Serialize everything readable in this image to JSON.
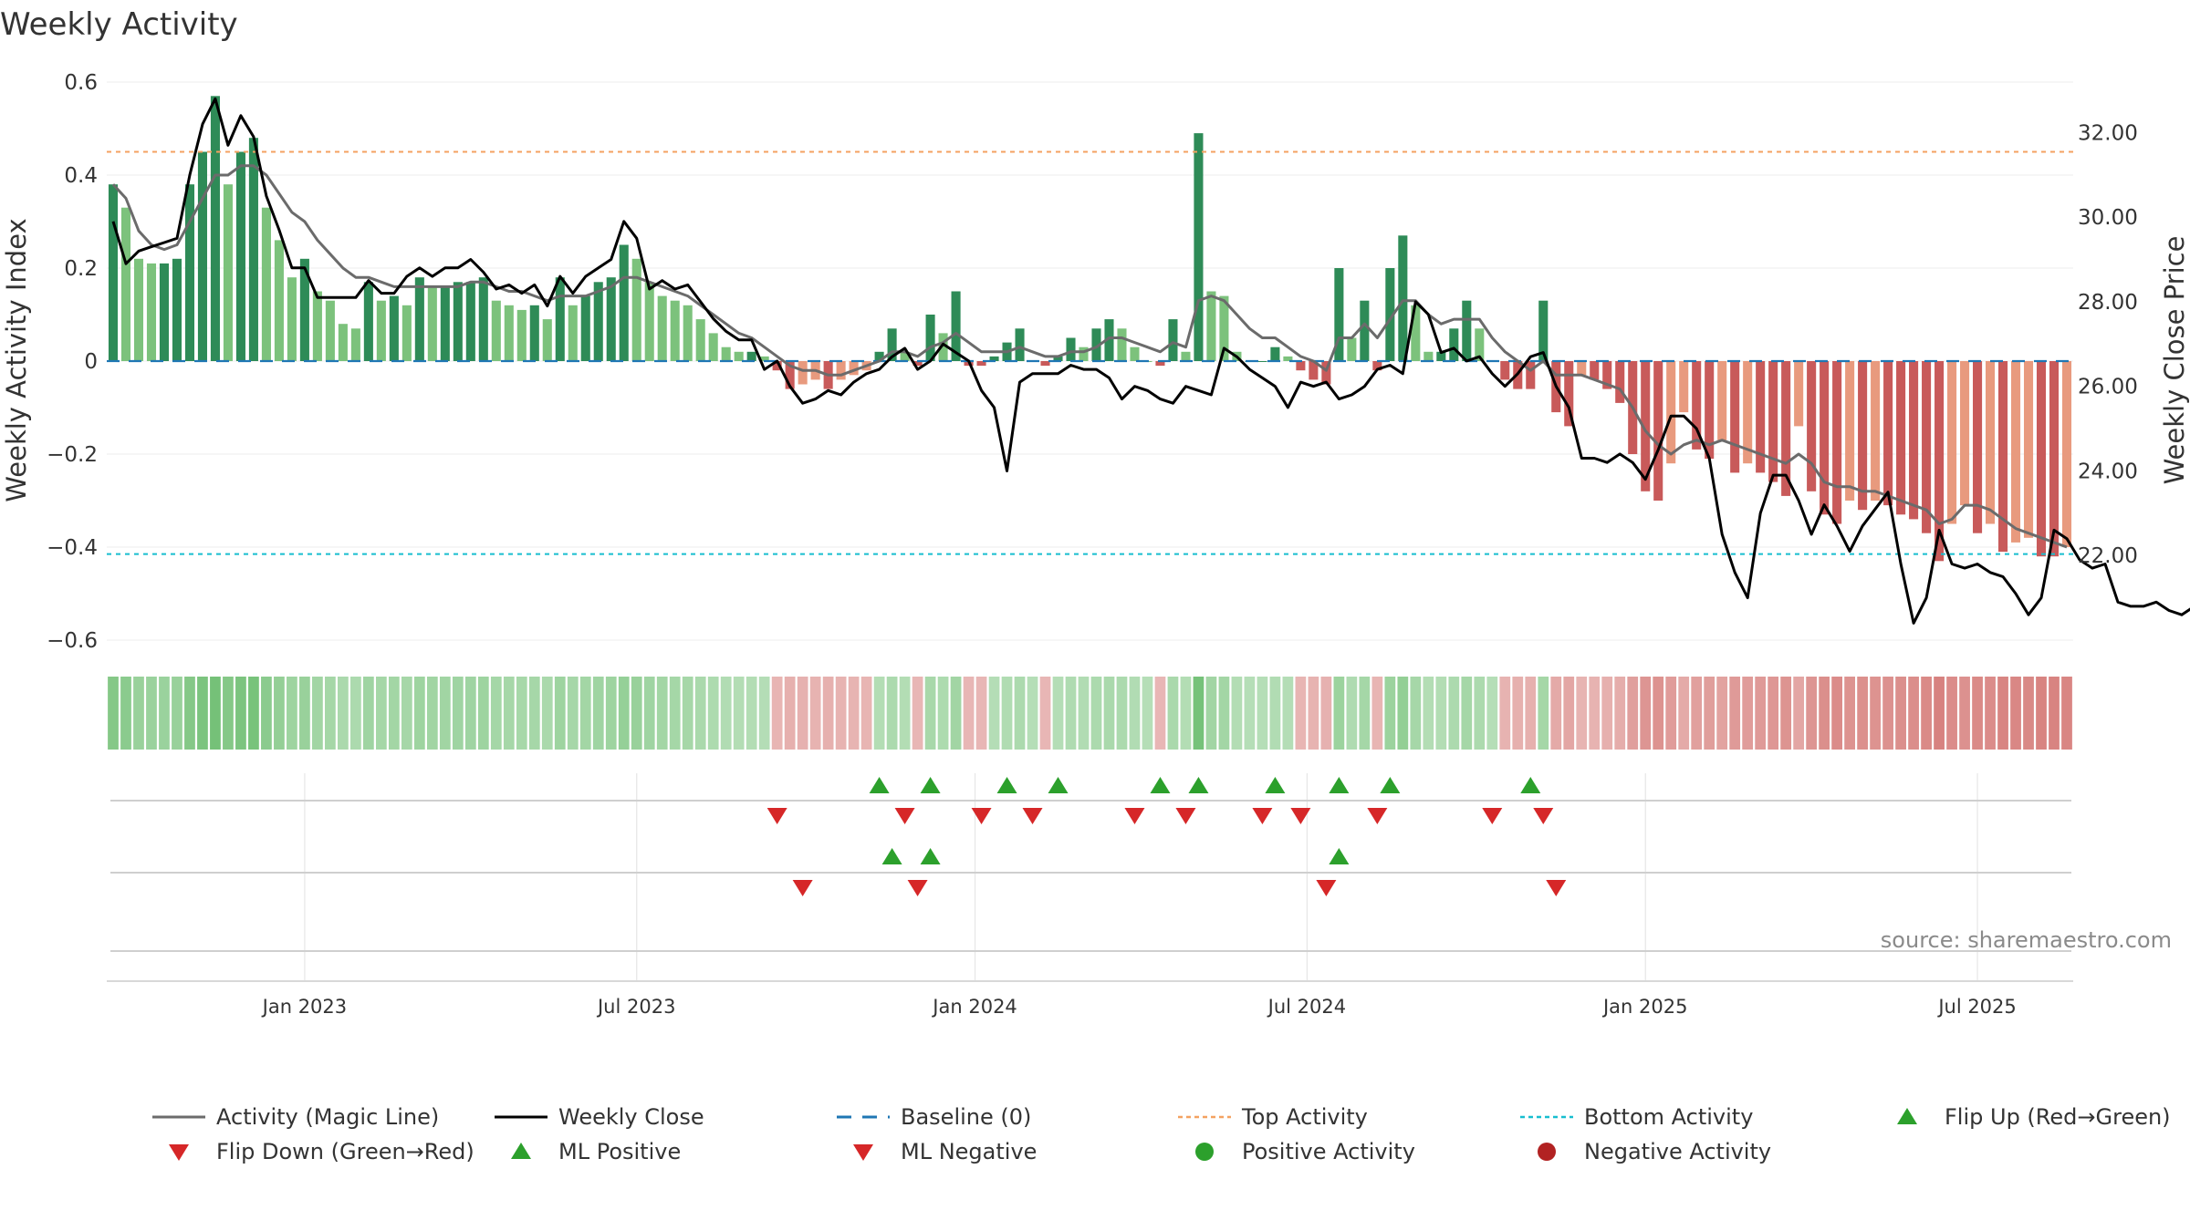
{
  "chart_data": {
    "type": "bar",
    "title": "Weekly Activity",
    "ylabel": "Weekly Activity Index",
    "y2label": "Weekly Close Price",
    "ylim": [
      -0.6,
      0.6
    ],
    "y2lim": [
      20.0,
      33.0
    ],
    "y_ticks": [
      {
        "value": 0.6,
        "label": "0.6"
      },
      {
        "value": 0.4,
        "label": "0.4"
      },
      {
        "value": 0.2,
        "label": "0.2"
      },
      {
        "value": 0,
        "label": "0"
      },
      {
        "value": -0.2,
        "label": "−0.2"
      },
      {
        "value": -0.4,
        "label": "−0.4"
      },
      {
        "value": -0.6,
        "label": "−0.6"
      }
    ],
    "y2_ticks": [
      {
        "value": 32.0,
        "label": "32.00"
      },
      {
        "value": 30.0,
        "label": "30.00"
      },
      {
        "value": 28.0,
        "label": "28.00"
      },
      {
        "value": 26.0,
        "label": "26.00"
      },
      {
        "value": 24.0,
        "label": "24.00"
      },
      {
        "value": 22.0,
        "label": "22.00"
      }
    ],
    "x_ticks": [
      {
        "week": 15.5,
        "label": "Jan 2023"
      },
      {
        "week": 41.5,
        "label": "Jul 2023"
      },
      {
        "week": 68,
        "label": "Jan 2024"
      },
      {
        "week": 94,
        "label": "Jul 2024"
      },
      {
        "week": 120.5,
        "label": "Jan 2025"
      },
      {
        "week": 146.5,
        "label": "Jul 2025"
      }
    ],
    "top_activity": 0.45,
    "bottom_activity": -0.415,
    "activity": [
      0.38,
      0.33,
      0.22,
      0.21,
      0.21,
      0.22,
      0.38,
      0.45,
      0.57,
      0.38,
      0.45,
      0.48,
      0.33,
      0.26,
      0.18,
      0.22,
      0.15,
      0.13,
      0.08,
      0.07,
      0.17,
      0.13,
      0.14,
      0.12,
      0.18,
      0.16,
      0.16,
      0.17,
      0.17,
      0.18,
      0.13,
      0.12,
      0.11,
      0.12,
      0.09,
      0.18,
      0.12,
      0.14,
      0.17,
      0.18,
      0.25,
      0.22,
      0.17,
      0.14,
      0.13,
      0.12,
      0.09,
      0.06,
      0.03,
      0.02,
      0.02,
      0.01,
      -0.02,
      -0.06,
      -0.05,
      -0.04,
      -0.06,
      -0.04,
      -0.03,
      -0.02,
      0.02,
      0.07,
      0.02,
      -0.01,
      0.1,
      0.06,
      0.15,
      -0.01,
      -0.01,
      0.01,
      0.04,
      0.07,
      0.0,
      -0.01,
      0.01,
      0.05,
      0.03,
      0.07,
      0.09,
      0.07,
      0.03,
      0.0,
      -0.01,
      0.09,
      0.02,
      0.49,
      0.15,
      0.14,
      0.02,
      0.0,
      0.0,
      0.03,
      0.01,
      -0.02,
      -0.04,
      -0.05,
      0.2,
      0.05,
      0.13,
      -0.02,
      0.2,
      0.27,
      0.12,
      0.02,
      0.02,
      0.07,
      0.13,
      0.07,
      0.0,
      -0.04,
      -0.06,
      -0.06,
      0.13,
      -0.11,
      -0.14,
      -0.03,
      -0.04,
      -0.06,
      -0.09,
      -0.2,
      -0.28,
      -0.3,
      -0.22,
      -0.11,
      -0.19,
      -0.21,
      -0.17,
      -0.24,
      -0.22,
      -0.24,
      -0.26,
      -0.29,
      -0.14,
      -0.28,
      -0.33,
      -0.35,
      -0.3,
      -0.32,
      -0.3,
      -0.31,
      -0.33,
      -0.34,
      -0.37,
      -0.43,
      -0.35,
      -0.31,
      -0.37,
      -0.35,
      -0.41,
      -0.39,
      -0.38,
      -0.42,
      -0.42,
      -0.4
    ],
    "magic_line": [
      0.38,
      0.35,
      0.28,
      0.25,
      0.24,
      0.25,
      0.3,
      0.35,
      0.4,
      0.4,
      0.42,
      0.42,
      0.4,
      0.36,
      0.32,
      0.3,
      0.26,
      0.23,
      0.2,
      0.18,
      0.18,
      0.17,
      0.16,
      0.16,
      0.16,
      0.16,
      0.16,
      0.16,
      0.17,
      0.17,
      0.16,
      0.15,
      0.15,
      0.14,
      0.13,
      0.14,
      0.14,
      0.14,
      0.15,
      0.16,
      0.18,
      0.18,
      0.17,
      0.16,
      0.15,
      0.14,
      0.12,
      0.1,
      0.08,
      0.06,
      0.05,
      0.03,
      0.01,
      -0.01,
      -0.02,
      -0.02,
      -0.03,
      -0.03,
      -0.02,
      -0.01,
      0.0,
      0.02,
      0.02,
      0.01,
      0.03,
      0.04,
      0.06,
      0.04,
      0.02,
      0.02,
      0.02,
      0.03,
      0.02,
      0.01,
      0.01,
      0.02,
      0.02,
      0.03,
      0.05,
      0.05,
      0.04,
      0.03,
      0.02,
      0.04,
      0.03,
      0.13,
      0.14,
      0.13,
      0.1,
      0.07,
      0.05,
      0.05,
      0.03,
      0.01,
      0.0,
      -0.02,
      0.05,
      0.05,
      0.08,
      0.05,
      0.09,
      0.13,
      0.13,
      0.1,
      0.08,
      0.09,
      0.09,
      0.09,
      0.05,
      0.02,
      0.0,
      -0.02,
      0.0,
      -0.03,
      -0.03,
      -0.03,
      -0.04,
      -0.05,
      -0.06,
      -0.1,
      -0.15,
      -0.18,
      -0.2,
      -0.18,
      -0.17,
      -0.18,
      -0.17,
      -0.18,
      -0.19,
      -0.2,
      -0.21,
      -0.22,
      -0.2,
      -0.22,
      -0.26,
      -0.27,
      -0.27,
      -0.28,
      -0.28,
      -0.29,
      -0.3,
      -0.31,
      -0.32,
      -0.35,
      -0.34,
      -0.31,
      -0.31,
      -0.32,
      -0.34,
      -0.36,
      -0.37,
      -0.38,
      -0.39,
      -0.4
    ],
    "weekly_close": [
      29.9,
      28.9,
      29.2,
      29.3,
      29.4,
      29.5,
      31.0,
      32.2,
      32.8,
      31.7,
      32.4,
      31.9,
      30.5,
      29.7,
      28.8,
      28.8,
      28.1,
      28.1,
      28.1,
      28.1,
      28.5,
      28.2,
      28.2,
      28.6,
      28.8,
      28.6,
      28.8,
      28.8,
      29.0,
      28.7,
      28.3,
      28.4,
      28.2,
      28.4,
      27.9,
      28.6,
      28.2,
      28.6,
      28.8,
      29.0,
      29.9,
      29.5,
      28.3,
      28.5,
      28.3,
      28.4,
      28.0,
      27.6,
      27.3,
      27.1,
      27.1,
      26.4,
      26.6,
      26.0,
      25.6,
      25.7,
      25.9,
      25.8,
      26.1,
      26.3,
      26.4,
      26.7,
      26.9,
      26.4,
      26.6,
      27.0,
      26.8,
      26.6,
      25.9,
      25.5,
      24.0,
      26.1,
      26.3,
      26.3,
      26.3,
      26.5,
      26.4,
      26.4,
      26.2,
      25.7,
      26.0,
      25.9,
      25.7,
      25.6,
      26.0,
      25.9,
      25.8,
      26.9,
      26.7,
      26.4,
      26.2,
      26.0,
      25.5,
      26.1,
      26.0,
      26.1,
      25.7,
      25.8,
      26.0,
      26.4,
      26.5,
      26.3,
      28.0,
      27.7,
      26.8,
      26.9,
      26.6,
      26.7,
      26.3,
      26.0,
      26.3,
      26.7,
      26.8,
      26.0,
      25.5,
      24.3,
      24.3,
      24.2,
      24.4,
      24.2,
      23.8,
      24.5,
      25.3,
      25.3,
      25.0,
      24.3,
      22.5,
      21.6,
      21.0,
      23.0,
      23.9,
      23.9,
      23.3,
      22.5,
      23.2,
      22.7,
      22.1,
      22.7,
      23.1,
      23.5,
      21.8,
      20.4,
      21.0,
      22.6,
      21.8,
      21.7,
      21.8,
      21.6,
      21.5,
      21.1,
      20.6,
      21.0,
      22.6,
      22.4,
      21.9,
      21.7,
      21.8,
      20.9,
      20.8,
      20.8,
      20.9,
      20.7,
      20.6,
      20.8
    ],
    "signal_rows": {
      "row1_up": [
        60,
        64,
        70,
        74,
        82,
        85,
        91,
        96,
        100,
        111
      ],
      "row1_down": [
        52,
        62,
        68,
        72,
        80,
        84,
        90,
        93,
        99,
        108,
        112
      ],
      "row2_up": [
        61,
        64,
        96
      ],
      "row2_down": [
        54,
        63,
        95,
        113
      ]
    },
    "legend": [
      {
        "label": "Activity (Magic Line)",
        "symbol": "line",
        "color": "#6b6b6b"
      },
      {
        "label": "Weekly Close",
        "symbol": "line",
        "color": "#000000"
      },
      {
        "label": "Baseline (0)",
        "symbol": "dash",
        "color": "#1f77b4"
      },
      {
        "label": "Top Activity",
        "symbol": "dot",
        "color": "#f4a261"
      },
      {
        "label": "Bottom Activity",
        "symbol": "dot",
        "color": "#17becf"
      },
      {
        "label": "Flip Up (Red→Green)",
        "symbol": "triangle-up",
        "color": "#2ca02c"
      },
      {
        "label": "Flip Down (Green→Red)",
        "symbol": "triangle-down",
        "color": "#d62728"
      },
      {
        "label": "ML Positive",
        "symbol": "triangle-up",
        "color": "#2ca02c"
      },
      {
        "label": "ML Negative",
        "symbol": "triangle-down",
        "color": "#d62728"
      },
      {
        "label": "Positive Activity",
        "symbol": "circle",
        "color": "#2ca02c"
      },
      {
        "label": "Negative Activity",
        "symbol": "circle",
        "color": "#b22222"
      }
    ],
    "source": "source: sharemaestro.com",
    "colors": {
      "pos_dark": "#2e8b57",
      "pos_light": "#7cc27c",
      "neg_dark": "#c85a5a",
      "neg_light": "#e89a7e",
      "magic": "#6b6b6b",
      "close": "#000000",
      "baseline": "#1f77b4",
      "top": "#f4a261",
      "bottom": "#17becf",
      "flip_up": "#2ca02c",
      "flip_down": "#d62728"
    }
  }
}
